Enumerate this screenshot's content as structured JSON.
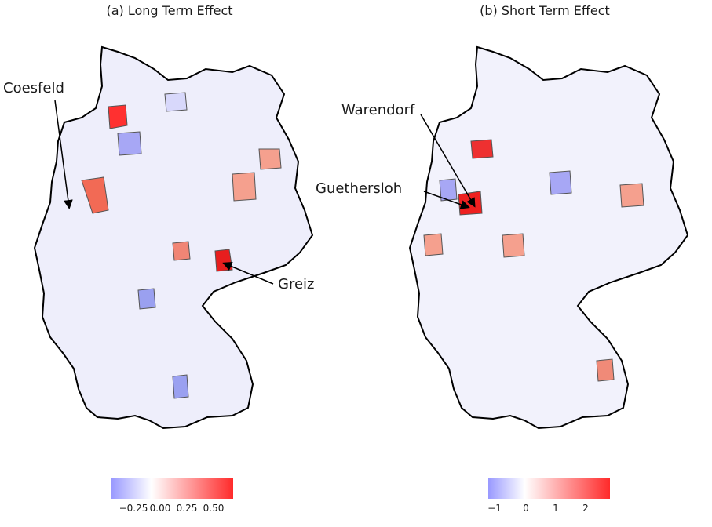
{
  "panels": [
    {
      "title": "(a) Long Term Effect",
      "legend": {
        "ticks": [
          "−0.25",
          "0.00",
          "0.25",
          "0.50"
        ],
        "colors": [
          "#9999ff",
          "#ffffff",
          "#ff2a2a"
        ]
      }
    },
    {
      "title": "(b) Short Term Effect",
      "legend": {
        "ticks": [
          "−1",
          "0",
          "1",
          "2"
        ],
        "colors": [
          "#9999ff",
          "#ffffff",
          "#ff2a2a"
        ]
      }
    }
  ],
  "annotations": {
    "coesfeld": "Coesfeld",
    "greiz": "Greiz",
    "guethersloh": "Guethersloh",
    "warendorf": "Warendorf"
  },
  "colors": {
    "negative": "#9999ff",
    "neutral": "#ffffff",
    "positive": "#ff2a2a",
    "border_state": "#000000",
    "border_district": "#555555"
  }
}
